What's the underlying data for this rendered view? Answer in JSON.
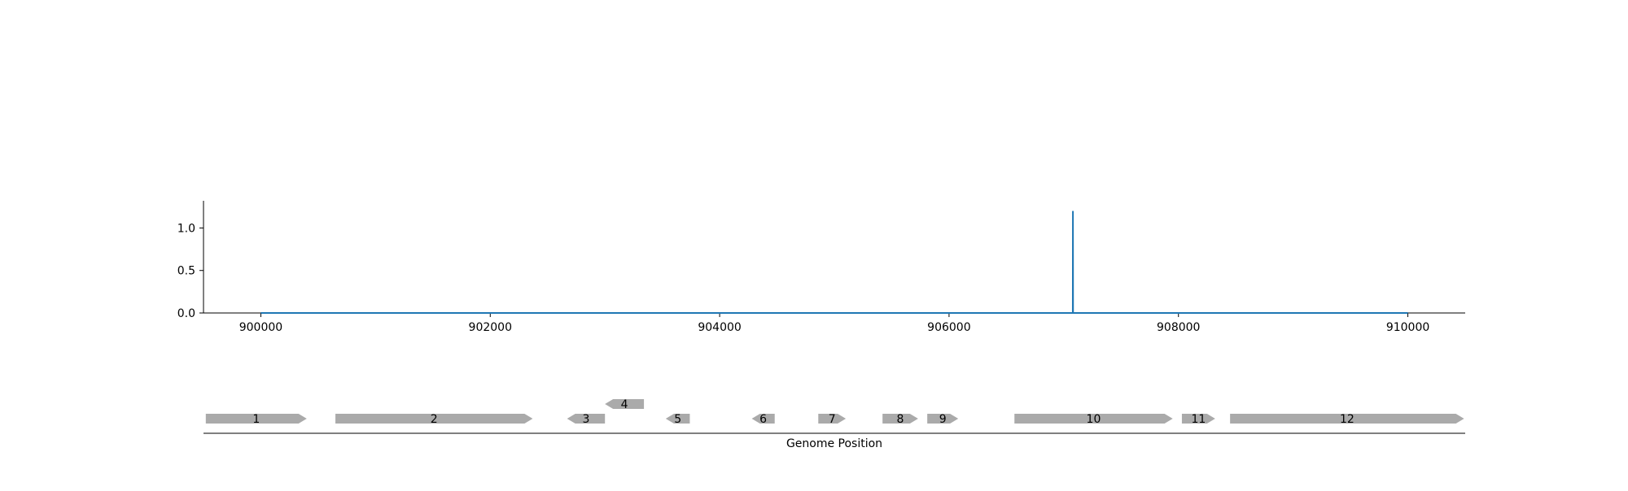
{
  "chart_data": {
    "type": "line",
    "x": [
      900000,
      907079,
      907080,
      907081,
      910000
    ],
    "y": [
      0,
      0,
      1.2,
      0,
      0
    ],
    "xlim": [
      899500,
      910500
    ],
    "ylim": [
      0,
      1.32
    ],
    "x_ticks": [
      "900000",
      "902000",
      "904000",
      "906000",
      "908000",
      "910000"
    ],
    "y_ticks": [
      "0.0",
      "0.5",
      "1.0"
    ],
    "xlabel": "",
    "ylabel": "",
    "line_color": "#1f77b4",
    "grid": false,
    "gene_track": {
      "xlabel": "Genome Position",
      "color": "#aaaaaa",
      "genes": [
        {
          "label": "1",
          "start": 899520,
          "end": 900400,
          "strand": "+",
          "row": 0
        },
        {
          "label": "2",
          "start": 900650,
          "end": 902370,
          "strand": "+",
          "row": 0
        },
        {
          "label": "3",
          "start": 902670,
          "end": 903000,
          "strand": "-",
          "row": 0
        },
        {
          "label": "4",
          "start": 903000,
          "end": 903340,
          "strand": "-",
          "row": 1
        },
        {
          "label": "5",
          "start": 903530,
          "end": 903740,
          "strand": "-",
          "row": 0
        },
        {
          "label": "6",
          "start": 904280,
          "end": 904480,
          "strand": "-",
          "row": 0
        },
        {
          "label": "7",
          "start": 904860,
          "end": 905100,
          "strand": "+",
          "row": 0
        },
        {
          "label": "8",
          "start": 905420,
          "end": 905730,
          "strand": "+",
          "row": 0
        },
        {
          "label": "9",
          "start": 905810,
          "end": 906080,
          "strand": "+",
          "row": 0
        },
        {
          "label": "10",
          "start": 906570,
          "end": 907950,
          "strand": "+",
          "row": 0
        },
        {
          "label": "11",
          "start": 908030,
          "end": 908320,
          "strand": "+",
          "row": 0
        },
        {
          "label": "12",
          "start": 908450,
          "end": 910490,
          "strand": "+",
          "row": 0
        }
      ]
    }
  }
}
